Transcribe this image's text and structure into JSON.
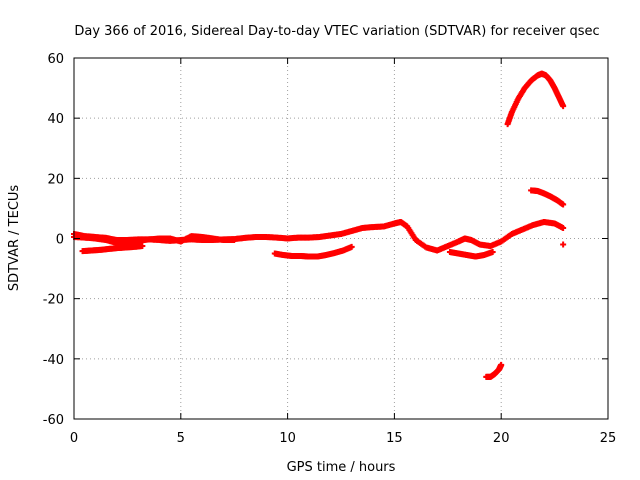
{
  "chart_data": {
    "type": "scatter",
    "title": "Day 366 of 2016, Sidereal Day-to-day VTEC variation (SDTVAR) for receiver qsec",
    "xlabel": "GPS time / hours",
    "ylabel": "SDTVAR / TECUs",
    "xlim": [
      0,
      25
    ],
    "ylim": [
      -60,
      60
    ],
    "xticks": [
      0,
      5,
      10,
      15,
      20,
      25
    ],
    "yticks": [
      -60,
      -40,
      -20,
      0,
      20,
      40,
      60
    ],
    "grid": true,
    "marker": "+",
    "color": "#ff0000",
    "series": [
      {
        "name": "main-trace",
        "x": [
          0.0,
          0.5,
          1.0,
          1.5,
          2.0,
          2.5,
          3.0,
          3.5,
          4.0,
          4.5,
          5.0,
          5.5,
          6.0,
          6.5,
          7.0,
          7.5,
          8.0,
          8.5,
          9.0,
          9.5,
          10.0,
          10.5,
          11.0,
          11.5,
          12.0,
          12.5,
          13.0,
          13.5,
          14.0,
          14.5,
          15.0,
          15.3,
          15.6,
          16.0,
          16.5,
          17.0,
          17.5,
          18.0,
          18.3,
          18.6,
          19.0,
          19.5,
          20.0,
          20.5,
          21.0,
          21.5,
          22.0,
          22.5,
          22.9
        ],
        "y": [
          1.5,
          0.8,
          0.5,
          0.2,
          -0.5,
          -0.5,
          -0.3,
          -0.3,
          -0.5,
          -0.8,
          -0.5,
          -0.3,
          -0.5,
          -0.5,
          -0.3,
          -0.2,
          0.2,
          0.5,
          0.5,
          0.3,
          0.0,
          0.3,
          0.3,
          0.5,
          1.0,
          1.5,
          2.5,
          3.5,
          3.8,
          4.0,
          5.0,
          5.5,
          4.0,
          -0.5,
          -3.0,
          -4.0,
          -2.5,
          -1.0,
          0.0,
          -0.5,
          -2.0,
          -2.5,
          -1.0,
          1.5,
          3.0,
          4.5,
          5.5,
          5.0,
          3.5
        ]
      },
      {
        "name": "upper-band",
        "x": [
          0.0,
          0.5,
          1.0,
          1.5,
          2.0,
          2.5,
          3.0,
          3.5,
          4.0,
          4.5,
          5.0,
          5.5,
          6.0,
          6.5,
          7.0,
          7.5
        ],
        "y": [
          0.5,
          0.3,
          0.0,
          -0.5,
          -1.5,
          -1.5,
          -0.8,
          -0.3,
          0.0,
          0.0,
          -1.0,
          0.8,
          0.5,
          0.0,
          -0.5,
          -0.5
        ]
      },
      {
        "name": "lower-segment-early",
        "x": [
          0.4,
          0.8,
          1.2,
          1.6,
          2.0,
          2.4,
          2.8,
          3.2
        ],
        "y": [
          -4.2,
          -4.0,
          -3.8,
          -3.5,
          -3.2,
          -3.0,
          -2.8,
          -2.5
        ]
      },
      {
        "name": "lower-segment-mid",
        "x": [
          9.4,
          9.8,
          10.2,
          10.6,
          11.0,
          11.4,
          11.8,
          12.2,
          12.6,
          13.0
        ],
        "y": [
          -5.0,
          -5.5,
          -5.8,
          -5.8,
          -6.0,
          -6.0,
          -5.5,
          -4.8,
          -4.0,
          -2.8
        ]
      },
      {
        "name": "lower-segment-late",
        "x": [
          17.6,
          18.0,
          18.4,
          18.8,
          19.2,
          19.6
        ],
        "y": [
          -4.5,
          -5.0,
          -5.5,
          -6.0,
          -5.5,
          -4.5
        ]
      },
      {
        "name": "negative-arc",
        "x": [
          19.3,
          19.5,
          19.7,
          19.9,
          20.0
        ],
        "y": [
          -46.0,
          -46.0,
          -45.0,
          -43.5,
          -42.0
        ]
      },
      {
        "name": "positive-arc",
        "x": [
          20.3,
          20.5,
          20.8,
          21.1,
          21.4,
          21.7,
          21.9,
          22.1,
          22.3,
          22.5,
          22.7,
          22.9
        ],
        "y": [
          38.0,
          42.0,
          46.5,
          50.0,
          52.5,
          54.2,
          54.8,
          54.2,
          52.5,
          50.0,
          47.0,
          44.0
        ]
      },
      {
        "name": "secondary-arc",
        "x": [
          21.4,
          21.7,
          22.0,
          22.3,
          22.6,
          22.9
        ],
        "y": [
          16.0,
          15.8,
          15.0,
          14.0,
          12.8,
          11.3
        ]
      },
      {
        "name": "isolated-point",
        "x": [
          22.9
        ],
        "y": [
          -2.0
        ]
      }
    ]
  }
}
